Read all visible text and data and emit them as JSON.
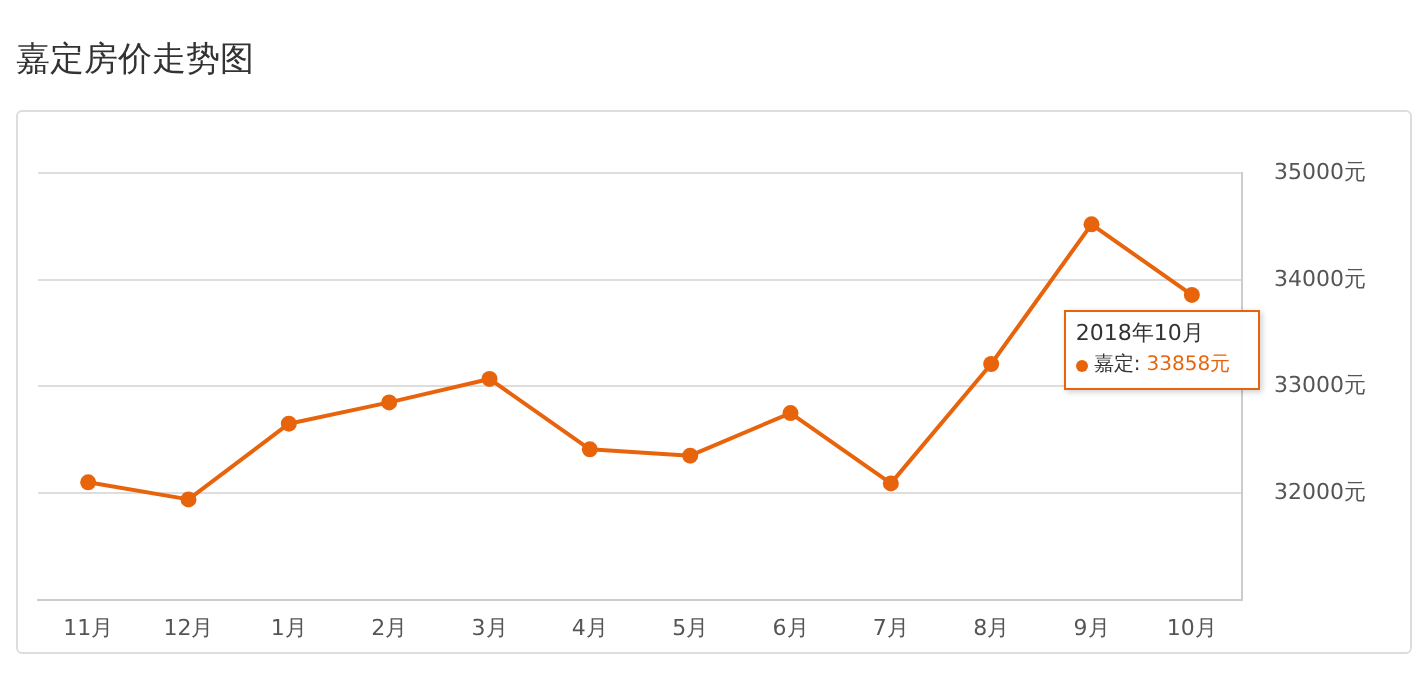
{
  "chart_data": {
    "type": "line",
    "title": "嘉定房价走势图",
    "categories": [
      "11月",
      "12月",
      "1月",
      "2月",
      "3月",
      "4月",
      "5月",
      "6月",
      "7月",
      "8月",
      "9月",
      "10月"
    ],
    "series": [
      {
        "name": "嘉定:",
        "color": "#e8640c",
        "values": [
          32100,
          31940,
          32650,
          32850,
          33070,
          32410,
          32350,
          32750,
          32090,
          33210,
          34520,
          33858
        ],
        "value_labels": [
          null,
          null,
          null,
          null,
          null,
          null,
          null,
          null,
          null,
          null,
          null,
          "33858元"
        ]
      }
    ],
    "ylim": [
      31000,
      35000
    ],
    "yticks": [
      {
        "value": 32000,
        "label": "32000元"
      },
      {
        "value": 33000,
        "label": "33000元"
      },
      {
        "value": 34000,
        "label": "34000元"
      },
      {
        "value": 35000,
        "label": "35000元"
      }
    ],
    "annotations": [
      {
        "text": "2018年10月",
        "x": "10月",
        "y": 33858
      }
    ],
    "grid": "y",
    "legend": "right",
    "marker": "circle",
    "line_style": "solid"
  }
}
